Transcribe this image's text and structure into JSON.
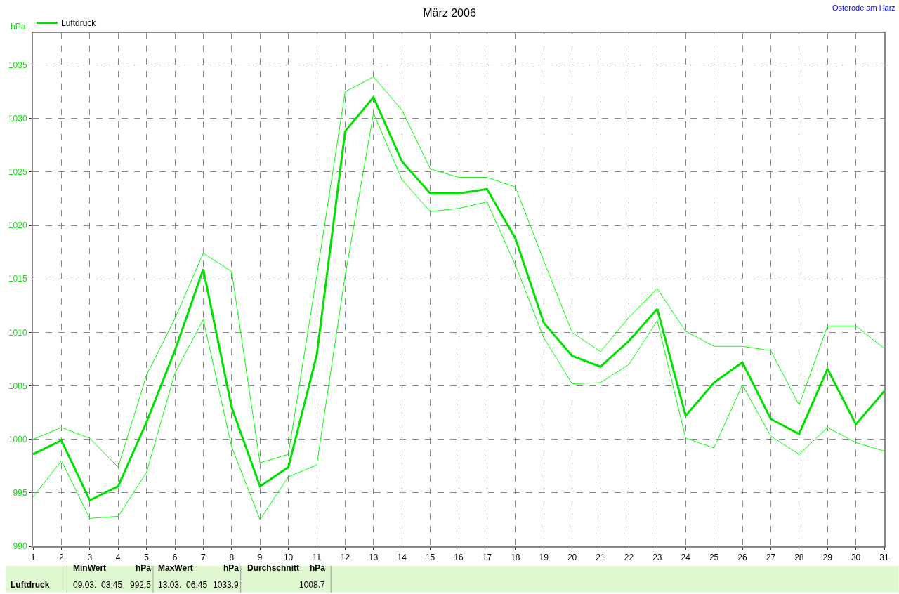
{
  "chart_data": {
    "type": "line",
    "title": "März 2006",
    "ylabel": "hPa",
    "annotations": [
      "Osterode am Harz",
      "Luftdruck",
      "MinWert",
      "hPa",
      "09.03.  03:45",
      "992.5",
      "MaxWert",
      "hPa",
      "13.03.  06:45",
      "1033.9",
      "Durchschnitt",
      "hPa",
      "1008.7"
    ],
    "x": [
      1,
      2,
      3,
      4,
      5,
      6,
      7,
      8,
      9,
      10,
      11,
      12,
      13,
      14,
      15,
      16,
      17,
      18,
      19,
      20,
      21,
      22,
      23,
      24,
      25,
      26,
      27,
      28,
      29,
      30,
      31
    ],
    "series": [
      {
        "name": "Luftdruck",
        "color": "#00e000",
        "values": [
          998.6,
          999.9,
          994.3,
          995.6,
          1001.6,
          1008.3,
          1015.9,
          1003.0,
          995.6,
          997.4,
          1007.9,
          1028.8,
          1032.0,
          1026.0,
          1023.0,
          1023.0,
          1023.4,
          1018.8,
          1010.9,
          1007.8,
          1006.8,
          1009.2,
          1012.2,
          1002.2,
          1005.3,
          1007.2,
          1001.9,
          1000.5,
          1006.6,
          1001.4,
          1004.5
        ]
      },
      {
        "color": "#00ff00",
        "values": [
          1000.0,
          1001.1,
          1000.1,
          997.4,
          1006.0,
          1011.3,
          1017.4,
          1015.7,
          997.8,
          998.6,
          1015.3,
          1032.5,
          1033.9,
          1030.8,
          1025.3,
          1024.5,
          1024.5,
          1023.6,
          1016.7,
          1010.0,
          1008.2,
          1011.4,
          1014.1,
          1010.1,
          1008.7,
          1008.7,
          1008.3,
          1003.2,
          1010.6,
          1010.6,
          1008.5
        ]
      },
      {
        "color": "#00ff00",
        "values": [
          994.6,
          998.0,
          992.6,
          992.8,
          996.9,
          1006.2,
          1011.2,
          999.3,
          992.5,
          996.5,
          997.6,
          1015.3,
          1030.5,
          1024.3,
          1021.3,
          1021.6,
          1022.2,
          1016.3,
          1009.5,
          1005.2,
          1005.3,
          1007.0,
          1011.1,
          1000.1,
          999.2,
          1005.1,
          1000.3,
          998.6,
          1001.1,
          999.7,
          998.9
        ]
      }
    ],
    "xlim": [
      1,
      31
    ],
    "xticks": [
      1,
      2,
      3,
      4,
      5,
      6,
      7,
      8,
      9,
      10,
      11,
      12,
      13,
      14,
      15,
      16,
      17,
      18,
      19,
      20,
      21,
      22,
      23,
      24,
      25,
      26,
      27,
      28,
      29,
      30,
      31
    ],
    "ylim": [
      990,
      1038
    ],
    "yticks": [
      990,
      995,
      1000,
      1005,
      1010,
      1015,
      1020,
      1025,
      1030,
      1035
    ],
    "grid": true,
    "legend": "top left",
    "marker": "none",
    "line_style": "solid"
  }
}
